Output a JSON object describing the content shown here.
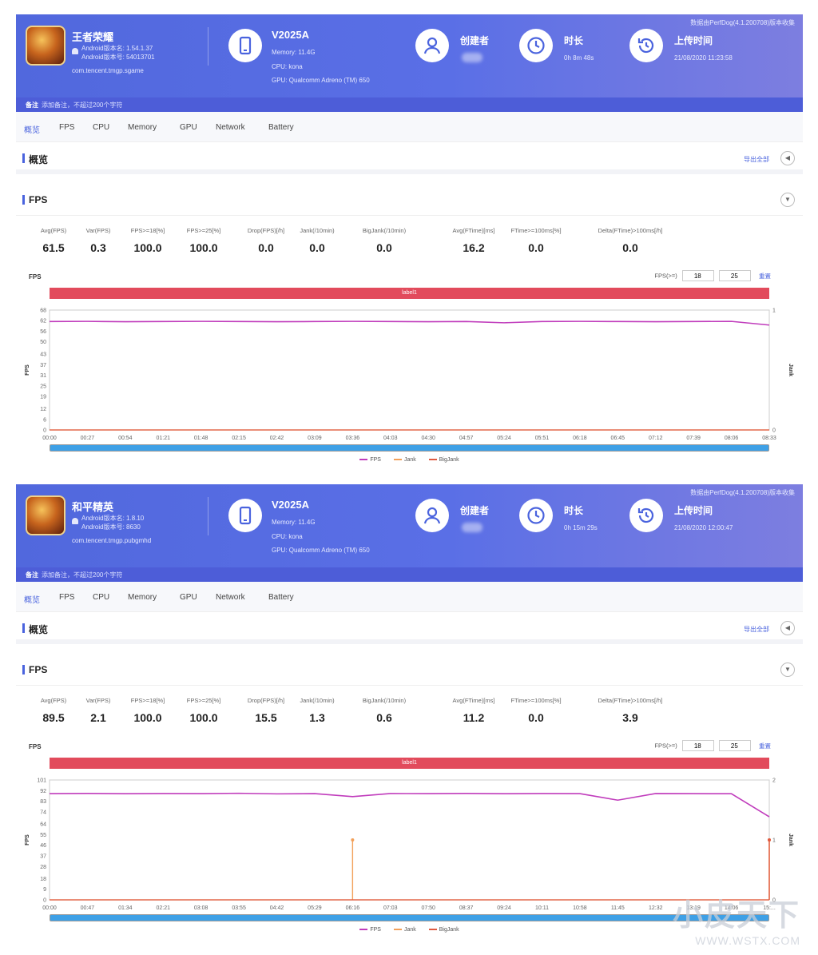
{
  "colors": {
    "accent": "#4a63de",
    "fps_line": "#c03cbc",
    "jank_line": "#f2a05a",
    "biglank_line": "#e05a40",
    "label_bar": "#e24b5c"
  },
  "reports": [
    {
      "app": {
        "name": "王者荣耀",
        "version": "Android版本名: 1.54.1.37",
        "build": "Android版本号: 54013701",
        "package": "com.tencent.tmgp.sgame"
      },
      "device": {
        "name": "V2025A",
        "memory": "Memory: 11.4G",
        "cpu": "CPU: kona",
        "gpu": "GPU: Qualcomm Adreno (TM) 650"
      },
      "creator_label": "创建者",
      "duration_label": "时长",
      "duration": "0h 8m 48s",
      "upload_label": "上传时间",
      "upload_time": "21/08/2020 11:23:58",
      "source": "数据由PerfDog(4.1.200708)版本收集",
      "note_label": "备注",
      "note_placeholder": "添加备注，不超过200个字符",
      "tabs": [
        "概览",
        "FPS",
        "CPU",
        "Memory",
        "GPU",
        "Network",
        "Battery"
      ],
      "overview_title": "概览",
      "export_label": "导出全部",
      "fps_section_title": "FPS",
      "metrics": [
        {
          "name": "Avg(FPS)",
          "value": "61.5"
        },
        {
          "name": "Var(FPS)",
          "value": "0.3"
        },
        {
          "name": "FPS>=18[%]",
          "value": "100.0"
        },
        {
          "name": "FPS>=25[%]",
          "value": "100.0"
        },
        {
          "name": "Drop(FPS)[/h]",
          "value": "0.0"
        },
        {
          "name": "Jank(/10min)",
          "value": "0.0"
        },
        {
          "name": "BigJank(/10min)",
          "value": "0.0"
        },
        {
          "name": "Avg(FTime)[ms]",
          "value": "16.2"
        },
        {
          "name": "FTime>=100ms[%]",
          "value": "0.0"
        },
        {
          "name": "Delta(FTime)>100ms[/h]",
          "value": "0.0"
        }
      ],
      "chart_title": "FPS",
      "fps_threshold_label": "FPS(>=)",
      "fps_low": "18",
      "fps_high": "25",
      "reset_label": "重置",
      "label_bar": "label1",
      "legend": [
        "FPS",
        "Jank",
        "BigJank"
      ],
      "chart_data": {
        "type": "line",
        "ylabel": "FPS",
        "y2label": "Jank",
        "yticks": [
          0,
          6,
          12,
          19,
          25,
          31,
          37,
          43,
          50,
          56,
          62,
          68
        ],
        "ylim": [
          0,
          68
        ],
        "y2ticks": [
          0,
          1
        ],
        "y2lim": [
          0,
          1
        ],
        "x": [
          "00:00",
          "00:27",
          "00:54",
          "01:21",
          "01:48",
          "02:15",
          "02:42",
          "03:09",
          "03:36",
          "04:03",
          "04:30",
          "04:57",
          "05:24",
          "05:51",
          "06:18",
          "06:45",
          "07:12",
          "07:39",
          "08:06",
          "08:33"
        ],
        "series": [
          {
            "name": "FPS",
            "values": [
              61.5,
              61.6,
              61.4,
              61.5,
              61.6,
              61.5,
              61.4,
              61.5,
              61.6,
              61.5,
              61.4,
              61.5,
              60.8,
              61.5,
              61.6,
              61.5,
              61.4,
              61.5,
              61.6,
              59.5
            ]
          },
          {
            "name": "Jank",
            "values": [
              0,
              0,
              0,
              0,
              0,
              0,
              0,
              0,
              0,
              0,
              0,
              0,
              0,
              0,
              0,
              0,
              0,
              0,
              0,
              0
            ]
          },
          {
            "name": "BigJank",
            "values": [
              0,
              0,
              0,
              0,
              0,
              0,
              0,
              0,
              0,
              0,
              0,
              0,
              0,
              0,
              0,
              0,
              0,
              0,
              0,
              0
            ]
          }
        ]
      }
    },
    {
      "app": {
        "name": "和平精英",
        "version": "Android版本名: 1.8.10",
        "build": "Android版本号: 8630",
        "package": "com.tencent.tmgp.pubgmhd"
      },
      "device": {
        "name": "V2025A",
        "memory": "Memory: 11.4G",
        "cpu": "CPU: kona",
        "gpu": "GPU: Qualcomm Adreno (TM) 650"
      },
      "creator_label": "创建者",
      "duration_label": "时长",
      "duration": "0h 15m 29s",
      "upload_label": "上传时间",
      "upload_time": "21/08/2020 12:00:47",
      "source": "数据由PerfDog(4.1.200708)版本收集",
      "note_label": "备注",
      "note_placeholder": "添加备注，不超过200个字符",
      "tabs": [
        "概览",
        "FPS",
        "CPU",
        "Memory",
        "GPU",
        "Network",
        "Battery"
      ],
      "overview_title": "概览",
      "export_label": "导出全部",
      "fps_section_title": "FPS",
      "metrics": [
        {
          "name": "Avg(FPS)",
          "value": "89.5"
        },
        {
          "name": "Var(FPS)",
          "value": "2.1"
        },
        {
          "name": "FPS>=18[%]",
          "value": "100.0"
        },
        {
          "name": "FPS>=25[%]",
          "value": "100.0"
        },
        {
          "name": "Drop(FPS)[/h]",
          "value": "15.5"
        },
        {
          "name": "Jank(/10min)",
          "value": "1.3"
        },
        {
          "name": "BigJank(/10min)",
          "value": "0.6"
        },
        {
          "name": "Avg(FTime)[ms]",
          "value": "11.2"
        },
        {
          "name": "FTime>=100ms[%]",
          "value": "0.0"
        },
        {
          "name": "Delta(FTime)>100ms[/h]",
          "value": "3.9"
        }
      ],
      "chart_title": "FPS",
      "fps_threshold_label": "FPS(>=)",
      "fps_low": "18",
      "fps_high": "25",
      "reset_label": "重置",
      "label_bar": "label1",
      "legend": [
        "FPS",
        "Jank",
        "BigJank"
      ],
      "chart_data": {
        "type": "line",
        "ylabel": "FPS",
        "y2label": "Jank",
        "yticks": [
          0,
          9,
          18,
          28,
          37,
          46,
          55,
          64,
          74,
          83,
          92,
          101
        ],
        "ylim": [
          0,
          101
        ],
        "y2ticks": [
          0,
          1,
          2
        ],
        "y2lim": [
          0,
          2
        ],
        "x": [
          "00:00",
          "00:47",
          "01:34",
          "02:21",
          "03:08",
          "03:55",
          "04:42",
          "05:29",
          "06:16",
          "07:03",
          "07:50",
          "08:37",
          "09:24",
          "10:11",
          "10:58",
          "11:45",
          "12:32",
          "13:19",
          "14:06",
          "15:..."
        ],
        "series": [
          {
            "name": "FPS",
            "values": [
              89.5,
              89.7,
              89.4,
              89.6,
              89.5,
              89.8,
              89.3,
              89.5,
              87.0,
              89.6,
              89.5,
              89.7,
              89.4,
              89.6,
              89.5,
              84.0,
              89.6,
              89.5,
              89.4,
              70.0
            ]
          },
          {
            "name": "Jank",
            "values": [
              0,
              0,
              0,
              0,
              0,
              0,
              0,
              0,
              1,
              0,
              0,
              0,
              0,
              0,
              0,
              0,
              0,
              0,
              0,
              1
            ]
          },
          {
            "name": "BigJank",
            "values": [
              0,
              0,
              0,
              0,
              0,
              0,
              0,
              0,
              0,
              0,
              0,
              0,
              0,
              0,
              0,
              0,
              0,
              0,
              0,
              1
            ]
          }
        ]
      }
    }
  ],
  "watermark": {
    "line1": "小皮天下",
    "line2": "WWW.WSTX.COM"
  }
}
